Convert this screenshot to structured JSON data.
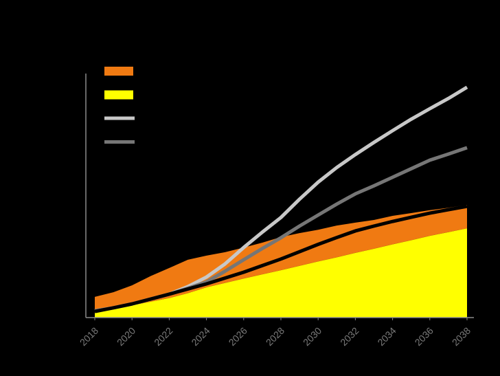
{
  "chart_data": {
    "type": "area_line",
    "x": [
      2018,
      2019,
      2020,
      2021,
      2022,
      2023,
      2024,
      2025,
      2026,
      2027,
      2028,
      2029,
      2030,
      2031,
      2032,
      2033,
      2034,
      2035,
      2036,
      2037,
      2038
    ],
    "xlim": [
      2018,
      2038
    ],
    "xticks": [
      2018,
      2020,
      2022,
      2024,
      2026,
      2028,
      2030,
      2032,
      2034,
      2036,
      2038
    ],
    "ylim": [
      0,
      100
    ],
    "series": [
      {
        "kind": "area",
        "color": "#ffff00",
        "values": [
          2,
          3.5,
          5,
          6.5,
          8,
          10,
          12.4,
          14.2,
          16,
          17.7,
          19.4,
          21.2,
          23,
          24.7,
          26.5,
          28.2,
          30,
          31.7,
          33.5,
          35,
          36.6
        ]
      },
      {
        "kind": "area",
        "color": "#f07a12",
        "values": [
          6.5,
          6.9,
          8.2,
          10.5,
          12.3,
          13.7,
          13,
          12.6,
          12.7,
          13,
          13.6,
          13.4,
          13,
          13,
          12.4,
          11.8,
          11.7,
          11.1,
          10.5,
          10,
          9.6
        ]
      },
      {
        "kind": "line",
        "color": "#c8c8c8",
        "values": [
          2.8,
          4,
          5.6,
          7.6,
          9.6,
          12.7,
          16.6,
          22,
          28.7,
          35,
          41,
          48.5,
          55.5,
          61.5,
          66.8,
          71.8,
          76.6,
          81.3,
          85.6,
          89.8,
          94.4
        ]
      },
      {
        "kind": "line",
        "color": "#767676",
        "values": [
          2.8,
          4,
          5.6,
          7.6,
          9.6,
          12,
          14.6,
          19,
          23.7,
          28.3,
          32.7,
          37.5,
          42,
          46.5,
          50.7,
          54,
          57.5,
          61,
          64.5,
          67,
          69.6
        ]
      },
      {
        "kind": "line",
        "color": "#000000",
        "values": [
          2.5,
          4,
          5.6,
          7.6,
          9.6,
          11.7,
          13.8,
          16.2,
          18.6,
          21.3,
          24,
          27,
          30,
          32.8,
          35.5,
          37.5,
          39.4,
          41.1,
          42.8,
          44.2,
          45.6
        ]
      }
    ]
  }
}
